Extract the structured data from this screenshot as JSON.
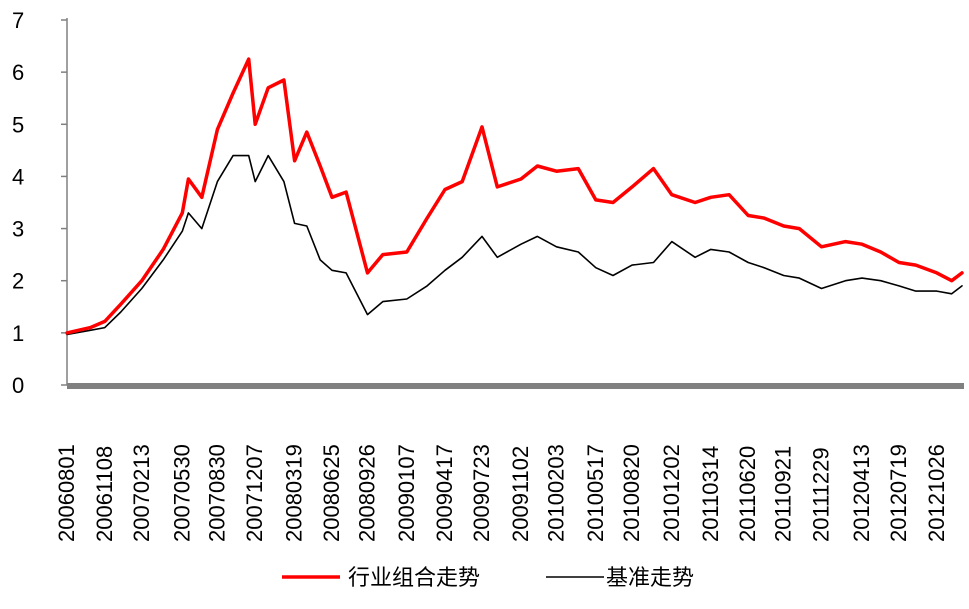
{
  "chart_data": {
    "type": "line",
    "title": "",
    "xlabel": "",
    "ylabel": "",
    "ylim": [
      0,
      7
    ],
    "yticks": [
      0,
      1,
      2,
      3,
      4,
      5,
      6,
      7
    ],
    "grid": false,
    "legend_position": "bottom",
    "x_tick_labels": [
      "20060801",
      "20061108",
      "20070213",
      "20070530",
      "20070830",
      "20071207",
      "20080319",
      "20080625",
      "20080926",
      "20090107",
      "20090417",
      "20090723",
      "20091102",
      "20100203",
      "20100517",
      "20100820",
      "20101202",
      "20110314",
      "20110620",
      "20110921",
      "20111229",
      "20120413",
      "20120719",
      "20121026"
    ],
    "x": [
      "20060801",
      "20061001",
      "20061108",
      "20061220",
      "20070213",
      "20070410",
      "20070530",
      "20070615",
      "20070720",
      "20070830",
      "20071010",
      "20071120",
      "20071207",
      "20080110",
      "20080220",
      "20080319",
      "20080420",
      "20080525",
      "20080625",
      "20080801",
      "20080926",
      "20081105",
      "20090107",
      "20090301",
      "20090417",
      "20090601",
      "20090723",
      "20090901",
      "20091102",
      "20091215",
      "20100203",
      "20100401",
      "20100517",
      "20100701",
      "20100820",
      "20101015",
      "20101202",
      "20110201",
      "20110314",
      "20110501",
      "20110620",
      "20110801",
      "20110921",
      "20111101",
      "20111229",
      "20120301",
      "20120413",
      "20120601",
      "20120719",
      "20120901",
      "20121026",
      "20121204",
      "20121231"
    ],
    "series": [
      {
        "name": "行业组合走势",
        "color": "#ff0000",
        "values": [
          1.0,
          1.1,
          1.22,
          1.55,
          2.0,
          2.6,
          3.3,
          3.95,
          3.6,
          4.9,
          5.6,
          6.25,
          5.0,
          5.7,
          5.85,
          4.3,
          4.85,
          4.2,
          3.6,
          3.7,
          2.15,
          2.5,
          2.55,
          3.2,
          3.75,
          3.9,
          4.95,
          3.8,
          3.95,
          4.2,
          4.1,
          4.15,
          3.55,
          3.5,
          3.8,
          4.15,
          3.65,
          3.5,
          3.6,
          3.65,
          3.25,
          3.2,
          3.05,
          3.0,
          2.65,
          2.75,
          2.7,
          2.55,
          2.35,
          2.3,
          2.15,
          2.0,
          2.15
        ]
      },
      {
        "name": "基准走势",
        "color": "#000000",
        "values": [
          0.97,
          1.05,
          1.1,
          1.4,
          1.85,
          2.4,
          2.95,
          3.3,
          3.0,
          3.9,
          4.4,
          4.4,
          3.9,
          4.4,
          3.9,
          3.1,
          3.05,
          2.4,
          2.2,
          2.15,
          1.35,
          1.6,
          1.65,
          1.9,
          2.2,
          2.45,
          2.85,
          2.45,
          2.7,
          2.85,
          2.65,
          2.55,
          2.25,
          2.1,
          2.3,
          2.35,
          2.75,
          2.45,
          2.6,
          2.55,
          2.35,
          2.25,
          2.1,
          2.05,
          1.85,
          2.0,
          2.05,
          2.0,
          1.9,
          1.8,
          1.8,
          1.75,
          1.9
        ]
      }
    ]
  }
}
